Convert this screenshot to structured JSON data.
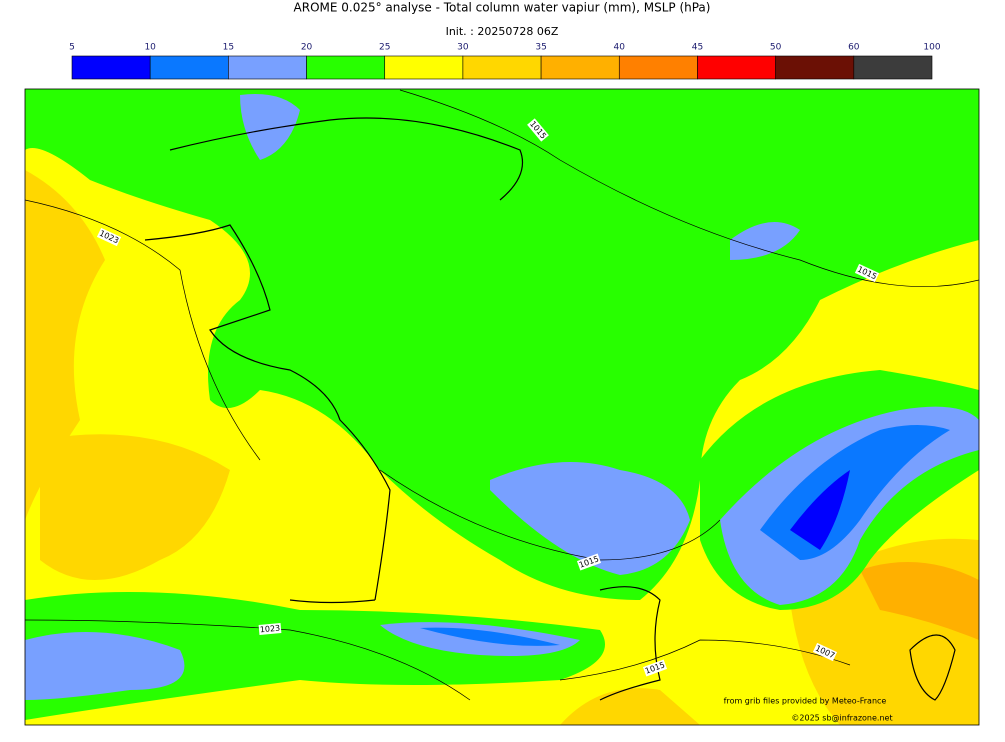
{
  "header": {
    "title": "AROME 0.025° analyse - Total column water vapiur (mm), MSLP (hPa)",
    "init": "Init. : 20250728 06Z"
  },
  "colorbar": {
    "ticks": [
      5,
      10,
      15,
      20,
      25,
      30,
      35,
      40,
      45,
      50,
      60,
      100
    ],
    "colors": [
      "#0000ff",
      "#0a78ff",
      "#78a0ff",
      "#28ff00",
      "#ffff00",
      "#ffd700",
      "#ffb000",
      "#ff8000",
      "#ff0000",
      "#6b1005",
      "#3c3c3c"
    ]
  },
  "isobar_labels": [
    "1015",
    "1023",
    "1015",
    "1015",
    "1023",
    "1015",
    "1007"
  ],
  "credits": {
    "source": "from grib files provided by Meteo-France",
    "copyright": "©2025 sb@infrazone.net"
  }
}
